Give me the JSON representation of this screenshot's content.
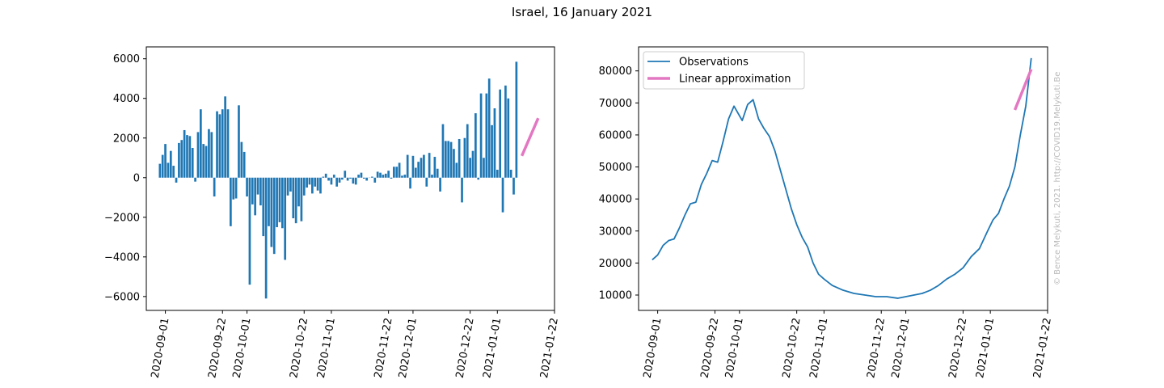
{
  "figure": {
    "title": "Israel, 16 January 2021",
    "watermark": "© Bence Melykuti, 2021. http://COVID19.Melykuti.Be"
  },
  "colors": {
    "series": "#1f77b4",
    "approximation": "#e377c2"
  },
  "chart_data": [
    {
      "type": "bar",
      "title": "",
      "xlabel": "",
      "ylabel": "",
      "x_range": [
        "2020-08-25",
        "2021-01-22"
      ],
      "ylim": [
        -6700,
        6600
      ],
      "x_ticks": [
        "2020-09-01",
        "2020-09-22",
        "2020-10-01",
        "2020-10-22",
        "2020-11-01",
        "2020-11-22",
        "2020-12-01",
        "2020-12-22",
        "2021-01-01",
        "2021-01-22"
      ],
      "y_ticks": [
        -6000,
        -4000,
        -2000,
        0,
        2000,
        4000,
        6000
      ],
      "start_date": "2020-08-30",
      "values": [
        700,
        1150,
        1700,
        750,
        1350,
        600,
        -250,
        1750,
        1900,
        2400,
        2150,
        2100,
        1500,
        -200,
        2300,
        3450,
        1700,
        1600,
        2450,
        2300,
        -950,
        3350,
        3200,
        3450,
        4100,
        3450,
        -2450,
        -1100,
        -1050,
        3650,
        1800,
        1300,
        -950,
        -5400,
        -1350,
        -1900,
        -850,
        -1400,
        -2950,
        -6100,
        -2450,
        -3500,
        -3850,
        -2500,
        -2250,
        -2550,
        -4150,
        -900,
        -700,
        -2050,
        -2300,
        -1450,
        -2200,
        -900,
        -500,
        -350,
        -800,
        -450,
        -650,
        -800,
        50,
        200,
        -150,
        -350,
        150,
        -450,
        -250,
        -100,
        350,
        -150,
        -50,
        -300,
        -350,
        150,
        250,
        -50,
        -150,
        0,
        50,
        -250,
        300,
        250,
        150,
        200,
        350,
        -50,
        550,
        550,
        750,
        100,
        150,
        1150,
        -550,
        1100,
        500,
        800,
        1000,
        1150,
        -450,
        1250,
        150,
        1050,
        450,
        -700,
        2700,
        1850,
        1850,
        1800,
        1450,
        750,
        1950,
        -1250,
        2000,
        2700,
        1000,
        1350,
        3250,
        -100,
        4250,
        1000,
        4250,
        5000,
        2650,
        3500,
        400,
        4450,
        -1750,
        4650,
        4000,
        400,
        -850,
        5850
      ]
    },
    {
      "type": "line",
      "title": "",
      "xlabel": "",
      "ylabel": "",
      "x_range": [
        "2020-08-25",
        "2021-01-22"
      ],
      "ylim": [
        5200,
        87500
      ],
      "x_ticks": [
        "2020-09-01",
        "2020-09-22",
        "2020-10-01",
        "2020-10-22",
        "2020-11-01",
        "2020-11-22",
        "2020-12-01",
        "2020-12-22",
        "2021-01-01",
        "2021-01-22"
      ],
      "y_ticks": [
        10000,
        20000,
        30000,
        40000,
        50000,
        60000,
        70000,
        80000
      ],
      "legend_position": "top-left",
      "series": [
        {
          "name": "Observations",
          "type": "line",
          "x": [
            "2020-08-30",
            "2020-09-01",
            "2020-09-03",
            "2020-09-05",
            "2020-09-07",
            "2020-09-09",
            "2020-09-11",
            "2020-09-13",
            "2020-09-15",
            "2020-09-17",
            "2020-09-19",
            "2020-09-21",
            "2020-09-23",
            "2020-09-25",
            "2020-09-27",
            "2020-09-29",
            "2020-10-01",
            "2020-10-02",
            "2020-10-04",
            "2020-10-06",
            "2020-10-08",
            "2020-10-10",
            "2020-10-12",
            "2020-10-14",
            "2020-10-16",
            "2020-10-18",
            "2020-10-20",
            "2020-10-22",
            "2020-10-24",
            "2020-10-26",
            "2020-10-28",
            "2020-10-30",
            "2020-11-01",
            "2020-11-04",
            "2020-11-08",
            "2020-11-12",
            "2020-11-16",
            "2020-11-20",
            "2020-11-24",
            "2020-11-28",
            "2020-12-01",
            "2020-12-04",
            "2020-12-07",
            "2020-12-10",
            "2020-12-13",
            "2020-12-16",
            "2020-12-19",
            "2020-12-22",
            "2020-12-25",
            "2020-12-28",
            "2020-12-31",
            "2021-01-02",
            "2021-01-04",
            "2021-01-06",
            "2021-01-08",
            "2021-01-10",
            "2021-01-12",
            "2021-01-14",
            "2021-01-16"
          ],
          "y": [
            21000,
            22500,
            25500,
            27000,
            27500,
            31000,
            35000,
            38500,
            39000,
            44500,
            48000,
            52000,
            51500,
            58000,
            65000,
            69000,
            66000,
            64500,
            69500,
            71000,
            65000,
            62000,
            59500,
            55000,
            49000,
            43000,
            37000,
            32000,
            28000,
            25000,
            20000,
            16500,
            15000,
            13000,
            11500,
            10500,
            10000,
            9500,
            9500,
            9000,
            9500,
            10000,
            10500,
            11500,
            13000,
            15000,
            16500,
            18500,
            22000,
            24500,
            30000,
            33500,
            35500,
            40000,
            44000,
            50000,
            60000,
            69000,
            84000
          ]
        },
        {
          "name": "Linear approximation",
          "type": "line",
          "x": [
            "2021-01-10",
            "2021-01-16"
          ],
          "y": [
            67800,
            80500
          ]
        }
      ]
    }
  ]
}
